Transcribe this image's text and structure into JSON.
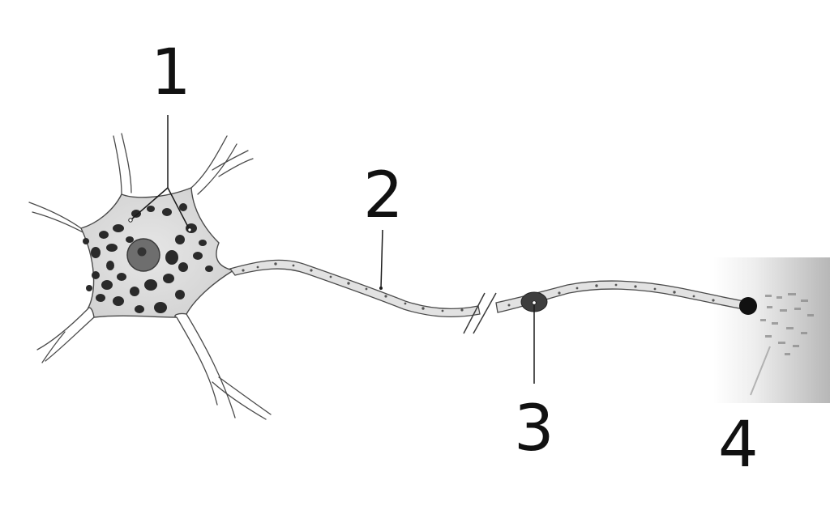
{
  "labels": {
    "one": "1",
    "two": "2",
    "three": "3",
    "four": "4"
  },
  "colors": {
    "background": "#ffffff",
    "outline": "#4a4a4a",
    "cell_fill": "#dedede",
    "granule": "#2a2a2a",
    "nucleus": "#6e6e6e",
    "nucleolus": "#333333",
    "leader_line": "#1a1a1a",
    "label": "#111111"
  }
}
